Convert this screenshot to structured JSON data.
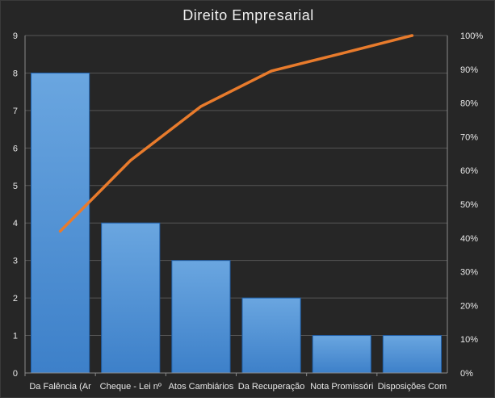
{
  "chart_data": {
    "type": "bar",
    "title": "Direito  Empresarial",
    "categories": [
      "Da Falência (Ar",
      "Cheque - Lei nº",
      "Atos Cambiários",
      "Da Recuperação",
      "Nota Promissóri",
      "Disposições Com"
    ],
    "series": [
      {
        "type": "bar",
        "values": [
          8,
          4,
          3,
          2,
          1,
          1
        ],
        "color": "#4a8fd6"
      },
      {
        "type": "line",
        "axis": "right",
        "values": [
          42,
          63,
          79,
          89.5,
          94.7,
          100
        ],
        "color": "#e87b2c"
      }
    ],
    "ylim": [
      0,
      9
    ],
    "yticks": [
      "0",
      "1",
      "2",
      "3",
      "4",
      "5",
      "6",
      "7",
      "8",
      "9"
    ],
    "y2lim": [
      0,
      100
    ],
    "y2ticks": [
      "0%",
      "10%",
      "20%",
      "30%",
      "40%",
      "50%",
      "60%",
      "70%",
      "80%",
      "90%",
      "100%"
    ],
    "grid": true,
    "legend": "none"
  }
}
